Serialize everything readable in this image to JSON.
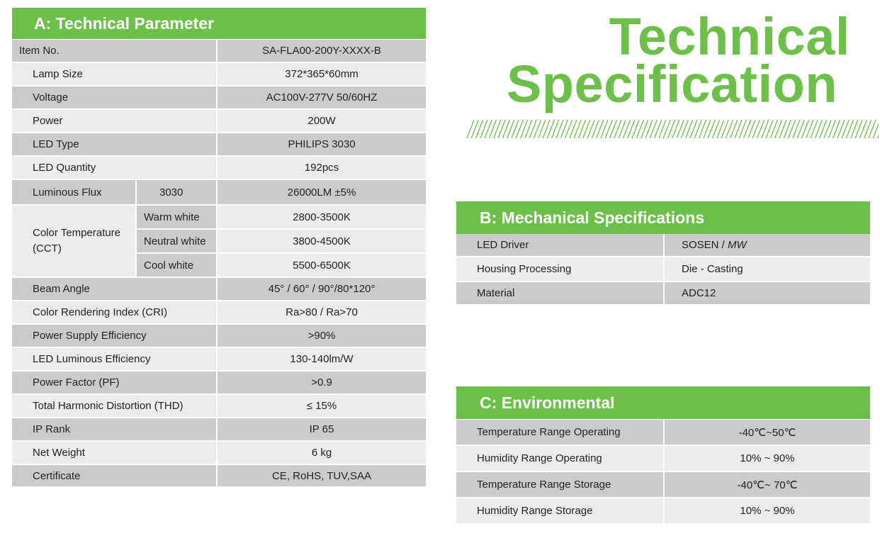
{
  "colors": {
    "accent": "#6cc04a",
    "row_dark": "#cbcbcb",
    "row_light": "#ececec"
  },
  "title": {
    "line1": "Technical",
    "line2": "Specification"
  },
  "section_a": {
    "title": "A: Technical Parameter",
    "rows": {
      "item_no": {
        "label": "Item No.",
        "value": "SA-FLA00-200Y-XXXX-B"
      },
      "lamp_size": {
        "label": "Lamp Size",
        "value": "372*365*60mm"
      },
      "voltage": {
        "label": "Voltage",
        "value": "AC100V-277V 50/60HZ"
      },
      "power": {
        "label": "Power",
        "value": "200W"
      },
      "led_type": {
        "label": "LED Type",
        "value": "PHILIPS 3030"
      },
      "led_quantity": {
        "label": "LED Quantity",
        "value": "192pcs"
      },
      "luminous_flux": {
        "label": "Luminous Flux",
        "sub": "3030",
        "value": "26000LM ±5%"
      },
      "cct": {
        "label_line1": "Color Temperature",
        "label_line2": "(CCT)",
        "warm": {
          "label": "Warm white",
          "value": "2800-3500K"
        },
        "neutral": {
          "label": "Neutral white",
          "value": "3800-4500K"
        },
        "cool": {
          "label": "Cool white",
          "value": "5500-6500K"
        }
      },
      "beam_angle": {
        "label": "Beam Angle",
        "value": "45° /  60° / 90°/80*120°"
      },
      "cri": {
        "label": "Color Rendering Index (CRI)",
        "value": "Ra>80 / Ra>70"
      },
      "psu_eff": {
        "label": "Power Supply Efficiency",
        "value": ">90%"
      },
      "led_eff": {
        "label": "LED Luminous Efficiency",
        "value": "130-140lm/W"
      },
      "pf": {
        "label": "Power Factor (PF)",
        "value": ">0.9"
      },
      "thd": {
        "label": "Total Harmonic Distortion (THD)",
        "value": "≤ 15%"
      },
      "ip": {
        "label": "IP Rank",
        "value": "IP 65"
      },
      "weight": {
        "label": "Net Weight",
        "value": "6 kg"
      },
      "cert": {
        "label": "Certificate",
        "value": "CE, RoHS, TUV,SAA"
      }
    }
  },
  "section_b": {
    "title": "B: Mechanical Specifications",
    "rows": [
      {
        "label": "LED Driver",
        "value": "SOSEN /",
        "value_italic": "MW"
      },
      {
        "label": "Housing Processing",
        "value": "Die - Casting",
        "value_italic": ""
      },
      {
        "label": "Material",
        "value": "ADC12",
        "value_italic": ""
      }
    ]
  },
  "section_c": {
    "title": "C: Environmental",
    "rows": [
      {
        "label": "Temperature Range Operating",
        "value": "-40℃~50℃"
      },
      {
        "label": "Humidity Range Operating",
        "value": "10% ~ 90%"
      },
      {
        "label": "Temperature Range Storage",
        "value": "-40℃~ 70℃"
      },
      {
        "label": "Humidity Range Storage",
        "value": "10% ~ 90%"
      }
    ]
  }
}
